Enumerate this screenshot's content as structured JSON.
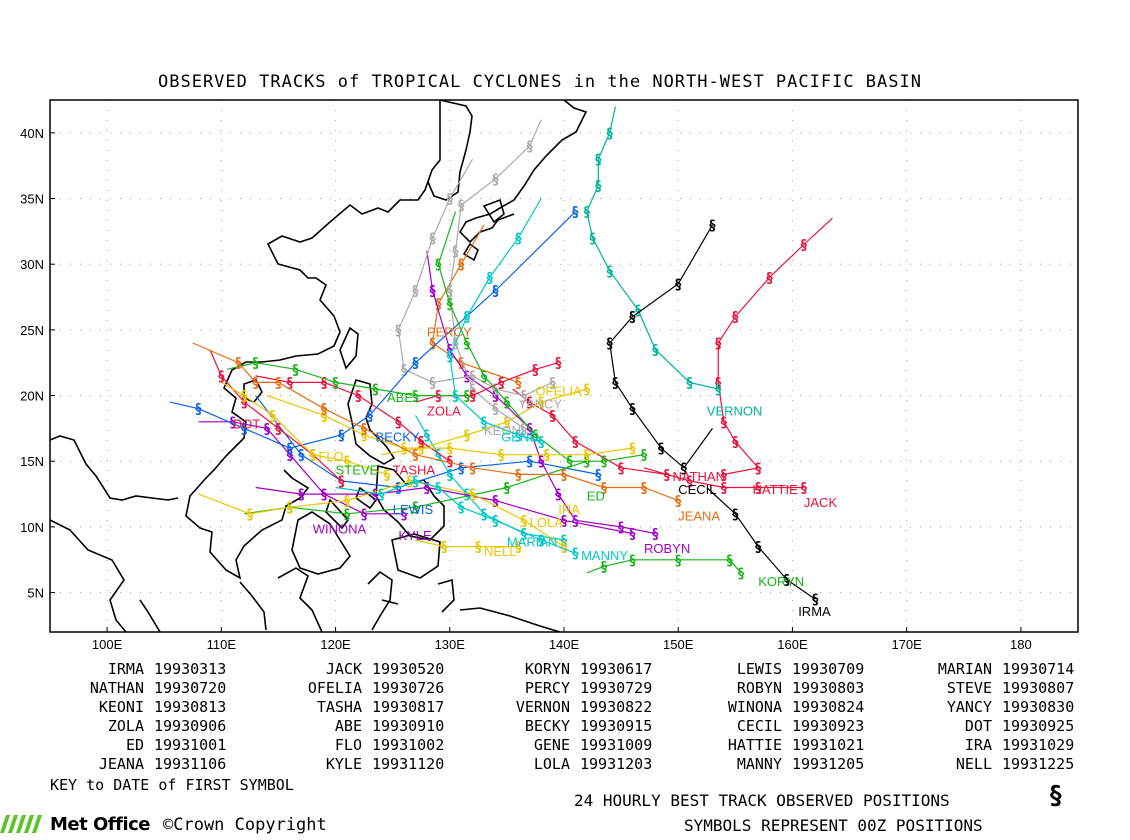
{
  "title": "OBSERVED TRACKS of TROPICAL CYCLONES in the NORTH-WEST PACIFIC BASIN",
  "axes": {
    "x_ticks": [
      "100E",
      "110E",
      "120E",
      "130E",
      "140E",
      "150E",
      "160E",
      "170E",
      "180"
    ],
    "y_ticks": [
      "40N",
      "35N",
      "30N",
      "25N",
      "20N",
      "15N",
      "10N",
      "5N"
    ],
    "lon_range": [
      95,
      185
    ],
    "lat_range": [
      2,
      42.5
    ]
  },
  "storms": [
    {
      "name": "IRMA",
      "date": "19930313",
      "color": "#000000",
      "label": [
        160.5,
        3.2
      ],
      "pts": [
        [
          162,
          4.5
        ],
        [
          159.5,
          6
        ],
        [
          157,
          8.5
        ],
        [
          155,
          11
        ],
        [
          152.5,
          13
        ]
      ]
    },
    {
      "name": "JACK",
      "date": "19930520",
      "color": "#e8123c",
      "label": [
        161,
        11.5
      ],
      "pts": [
        [
          154,
          14
        ],
        [
          157,
          14.5
        ],
        [
          155,
          16.5
        ],
        [
          154,
          18
        ],
        [
          153.5,
          21
        ],
        [
          153.5,
          24
        ],
        [
          155,
          26
        ],
        [
          158,
          29
        ],
        [
          161,
          31.5
        ],
        [
          163.5,
          33.5
        ]
      ]
    },
    {
      "name": "KORYN",
      "date": "19930617",
      "color": "#18b418",
      "label": [
        157,
        5.5
      ],
      "pts": [
        [
          155.5,
          6.5
        ],
        [
          154.5,
          7.5
        ],
        [
          150,
          7.5
        ],
        [
          146,
          7.5
        ],
        [
          143.5,
          7
        ],
        [
          142,
          6.5
        ]
      ]
    },
    {
      "name": "LEWIS",
      "date": "19930709",
      "color": "#0a64e6",
      "label": [
        125,
        11
      ],
      "pts": [
        [
          143,
          14
        ],
        [
          137,
          15
        ],
        [
          131,
          14.5
        ],
        [
          125.5,
          13
        ],
        [
          120.5,
          13.5
        ],
        [
          117,
          15.5
        ],
        [
          113,
          20
        ]
      ]
    },
    {
      "name": "MARIAN",
      "date": "19930714",
      "color": "#00c8c8",
      "label": [
        135,
        8.5
      ],
      "pts": [
        [
          140,
          9
        ],
        [
          136.5,
          9.5
        ],
        [
          133,
          11
        ],
        [
          131.5,
          12.5
        ],
        [
          130,
          14
        ],
        [
          129,
          15.5
        ],
        [
          128,
          17
        ],
        [
          127,
          18.5
        ]
      ]
    },
    {
      "name": "NATHAN",
      "date": "19930720",
      "color": "#e8123c",
      "label": [
        149.5,
        13.5
      ],
      "pts": [
        [
          149,
          14
        ],
        [
          145,
          14.5
        ],
        [
          141,
          16.5
        ],
        [
          139,
          18.5
        ],
        [
          137,
          19.5
        ],
        [
          135.5,
          20.5
        ]
      ]
    },
    {
      "name": "OFELIA",
      "date": "19930726",
      "color": "#e8c800",
      "label": [
        137.5,
        20
      ],
      "pts": [
        [
          142,
          20.5
        ],
        [
          138,
          19.5
        ],
        [
          135,
          18
        ],
        [
          131.5,
          17
        ],
        [
          127.5,
          16
        ],
        [
          124,
          15.5
        ]
      ]
    },
    {
      "name": "PERCY",
      "date": "19930729",
      "color": "#e86e14",
      "label": [
        128,
        24.5
      ],
      "pts": [
        [
          136,
          21
        ],
        [
          131,
          22.5
        ],
        [
          128.5,
          24
        ],
        [
          129,
          27
        ],
        [
          131,
          30
        ],
        [
          133,
          33
        ]
      ]
    },
    {
      "name": "ROBYN",
      "date": "19930803",
      "color": "#a000c8",
      "label": [
        147,
        8
      ],
      "pts": [
        [
          148,
          9.5
        ],
        [
          145,
          10
        ],
        [
          141,
          10.5
        ],
        [
          139.5,
          12.5
        ],
        [
          138,
          15
        ],
        [
          137,
          17.5
        ],
        [
          134,
          20
        ],
        [
          131.5,
          21.5
        ],
        [
          130,
          23.5
        ],
        [
          128.5,
          28
        ],
        [
          128,
          31
        ]
      ]
    },
    {
      "name": "STEVE",
      "date": "19930807",
      "color": "#18b418",
      "label": [
        120,
        14
      ],
      "pts": [
        [
          142,
          15
        ],
        [
          135,
          13
        ],
        [
          127,
          11.5
        ],
        [
          121,
          11
        ],
        [
          116,
          11.5
        ],
        [
          112,
          11
        ]
      ]
    },
    {
      "name": "KEONI",
      "date": "19930813",
      "color": "#aaaaaa",
      "label": [
        133,
        17
      ],
      "pts": [
        [
          136.5,
          17.5
        ],
        [
          134,
          19
        ],
        [
          132,
          20.5
        ],
        [
          130.5,
          24
        ],
        [
          130,
          28
        ],
        [
          130.5,
          31
        ],
        [
          131,
          34.5
        ],
        [
          134,
          36.5
        ],
        [
          137,
          39
        ],
        [
          138,
          41
        ]
      ]
    },
    {
      "name": "TASHA",
      "date": "19930817",
      "color": "#e8123c",
      "label": [
        125,
        14
      ],
      "pts": [
        [
          130,
          15
        ],
        [
          127.5,
          16.5
        ],
        [
          125.5,
          18
        ],
        [
          122,
          20
        ],
        [
          119,
          21
        ],
        [
          116,
          21
        ],
        [
          113,
          21.5
        ]
      ]
    },
    {
      "name": "VERNON",
      "date": "19930822",
      "color": "#00b4a0",
      "label": [
        152.5,
        18.5
      ],
      "pts": [
        [
          153.5,
          20.5
        ],
        [
          151,
          21
        ],
        [
          148,
          23.5
        ],
        [
          146.5,
          26.5
        ],
        [
          144,
          29.5
        ],
        [
          142.5,
          32
        ],
        [
          142,
          34
        ],
        [
          143,
          36
        ],
        [
          143,
          38
        ],
        [
          144,
          40
        ],
        [
          144.5,
          42
        ]
      ]
    },
    {
      "name": "WINONA",
      "date": "19930824",
      "color": "#a000c8",
      "label": [
        118,
        9.5
      ],
      "pts": [
        [
          126,
          11
        ],
        [
          122.5,
          11
        ],
        [
          119,
          12.5
        ],
        [
          116,
          15.5
        ],
        [
          114,
          17.5
        ],
        [
          111,
          18
        ],
        [
          108,
          18
        ]
      ]
    },
    {
      "name": "YANCY",
      "date": "19930830",
      "color": "#aaaaaa",
      "label": [
        136,
        19
      ],
      "pts": [
        [
          139,
          21
        ],
        [
          136.5,
          20
        ],
        [
          134,
          20.5
        ],
        [
          132,
          21.5
        ],
        [
          128.5,
          21
        ],
        [
          126,
          22
        ],
        [
          125.5,
          25
        ],
        [
          127,
          28
        ],
        [
          128.5,
          32
        ],
        [
          130,
          35
        ],
        [
          132,
          38
        ]
      ]
    },
    {
      "name": "ZOLA",
      "date": "19930906",
      "color": "#e8123c",
      "label": [
        128,
        18.5
      ],
      "pts": [
        [
          139.5,
          22.5
        ],
        [
          137.5,
          22
        ],
        [
          134.5,
          21
        ],
        [
          132,
          20
        ],
        [
          129,
          20
        ],
        [
          127,
          19.5
        ]
      ]
    },
    {
      "name": "ABE",
      "date": "19930910",
      "color": "#18b418",
      "label": [
        124.5,
        19.5
      ],
      "pts": [
        [
          131.5,
          20
        ],
        [
          127,
          20
        ],
        [
          123.5,
          20.5
        ],
        [
          120,
          21
        ],
        [
          116.5,
          22
        ],
        [
          113,
          22.5
        ],
        [
          110.5,
          22
        ]
      ]
    },
    {
      "name": "BECKY",
      "date": "19930915",
      "color": "#0a64e6",
      "label": [
        123.5,
        16.5
      ],
      "pts": [
        [
          141,
          34
        ],
        [
          134,
          28
        ],
        [
          127,
          22.5
        ],
        [
          123,
          18.5
        ],
        [
          120.5,
          17
        ],
        [
          116,
          16
        ],
        [
          112,
          17.5
        ],
        [
          108,
          19
        ],
        [
          105.5,
          19.5
        ]
      ]
    },
    {
      "name": "CECIL",
      "date": "19930923",
      "color": "#000000",
      "label": [
        150,
        12.5
      ],
      "pts": [
        [
          153,
          33
        ],
        [
          150,
          28.5
        ],
        [
          146,
          26
        ],
        [
          144,
          24
        ],
        [
          144.5,
          21
        ],
        [
          146,
          19
        ],
        [
          148.5,
          16
        ],
        [
          150.5,
          14.5
        ],
        [
          153,
          17.5
        ]
      ]
    },
    {
      "name": "DOT",
      "date": "19930925",
      "color": "#e8123c",
      "label": [
        111,
        17.5
      ],
      "pts": [
        [
          120.5,
          13.5
        ],
        [
          118,
          15.5
        ],
        [
          115,
          17.5
        ],
        [
          112,
          19.5
        ],
        [
          110,
          21.5
        ],
        [
          109,
          23.5
        ]
      ]
    },
    {
      "name": "ED",
      "date": "19931001",
      "color": "#18b418",
      "label": [
        142,
        12
      ],
      "pts": [
        [
          147,
          15.5
        ],
        [
          143.5,
          15
        ],
        [
          140.5,
          15
        ],
        [
          137.5,
          17
        ],
        [
          135,
          19.5
        ],
        [
          133,
          21.5
        ],
        [
          131.5,
          24
        ],
        [
          130,
          27
        ],
        [
          129,
          30
        ],
        [
          130.5,
          34
        ]
      ]
    },
    {
      "name": "FLO",
      "date": "19931002",
      "color": "#e8c800",
      "label": [
        118.5,
        15
      ],
      "pts": [
        [
          124.5,
          14
        ],
        [
          121,
          15
        ],
        [
          118,
          15.5
        ],
        [
          114.5,
          18.5
        ],
        [
          112,
          20
        ],
        [
          110,
          21
        ]
      ]
    },
    {
      "name": "GENE",
      "date": "19931009",
      "color": "#00c8c8",
      "label": [
        134.5,
        16.5
      ],
      "pts": [
        [
          138,
          16.5
        ],
        [
          136,
          17
        ],
        [
          133,
          18
        ],
        [
          130.5,
          20
        ],
        [
          130,
          23
        ],
        [
          131.5,
          26
        ],
        [
          133.5,
          29
        ],
        [
          136,
          32
        ],
        [
          138,
          35
        ]
      ]
    },
    {
      "name": "HATTIE",
      "date": "19931021",
      "color": "#e8123c",
      "label": [
        156.5,
        12.5
      ],
      "pts": [
        [
          161,
          13
        ],
        [
          157,
          13
        ],
        [
          154,
          13
        ],
        [
          151,
          13.5
        ],
        [
          147,
          14.5
        ]
      ]
    },
    {
      "name": "IRA",
      "date": "19931029",
      "color": "#e8c800",
      "label": [
        139.5,
        11
      ],
      "pts": [
        [
          146,
          16
        ],
        [
          142,
          15.5
        ],
        [
          138.5,
          15.5
        ],
        [
          134.5,
          15.5
        ],
        [
          130,
          16
        ],
        [
          126,
          16
        ],
        [
          122.5,
          17
        ],
        [
          119,
          18.5
        ],
        [
          114,
          20
        ]
      ]
    },
    {
      "name": "JEANA",
      "date": "19931106",
      "color": "#e86e14",
      "label": [
        150,
        10.5
      ],
      "pts": [
        [
          150,
          12
        ],
        [
          147,
          13
        ],
        [
          143.5,
          13
        ],
        [
          140,
          14
        ],
        [
          136,
          14
        ],
        [
          132,
          14.5
        ],
        [
          127,
          15.5
        ],
        [
          122.5,
          17.5
        ],
        [
          119,
          19
        ],
        [
          115,
          21
        ],
        [
          113,
          21
        ],
        [
          111.5,
          22.5
        ],
        [
          107.5,
          24
        ]
      ]
    },
    {
      "name": "KYLE",
      "date": "19931120",
      "color": "#a000c8",
      "label": [
        125.5,
        9
      ],
      "pts": [
        [
          146,
          9.5
        ],
        [
          140,
          10.5
        ],
        [
          134,
          12
        ],
        [
          128,
          13
        ],
        [
          123.5,
          12.5
        ],
        [
          117,
          12.5
        ],
        [
          113,
          13
        ]
      ]
    },
    {
      "name": "LOLA",
      "date": "19931203",
      "color": "#e8c800",
      "label": [
        137,
        10
      ],
      "pts": [
        [
          140,
          8.5
        ],
        [
          136.5,
          10.5
        ],
        [
          132,
          12.5
        ],
        [
          126.5,
          13.5
        ],
        [
          121,
          12
        ],
        [
          116,
          11.5
        ],
        [
          112.5,
          11
        ],
        [
          108,
          12.5
        ]
      ]
    },
    {
      "name": "MANNY",
      "date": "19931205",
      "color": "#00c8c8",
      "label": [
        141.5,
        7.5
      ],
      "pts": [
        [
          141,
          8
        ],
        [
          138,
          9
        ],
        [
          134,
          10.5
        ],
        [
          131,
          11.5
        ],
        [
          129,
          13
        ],
        [
          127,
          13.5
        ],
        [
          124,
          12.5
        ],
        [
          120,
          13
        ]
      ]
    },
    {
      "name": "NELL",
      "date": "19931225",
      "color": "#e8c800",
      "label": [
        133,
        7.8
      ],
      "pts": [
        [
          136,
          8.5
        ],
        [
          132.5,
          8.5
        ],
        [
          129.5,
          8.5
        ],
        [
          127,
          9
        ]
      ]
    }
  ],
  "key_label": "KEY to DATE of FIRST SYMBOL",
  "legend_line1": "24 HOURLY BEST TRACK OBSERVED POSITIONS",
  "legend_line2": "SYMBOLS REPRESENT 00Z POSITIONS",
  "legend_symbol": "§",
  "logo_name": "Met Office",
  "copyright": "©Crown Copyright"
}
